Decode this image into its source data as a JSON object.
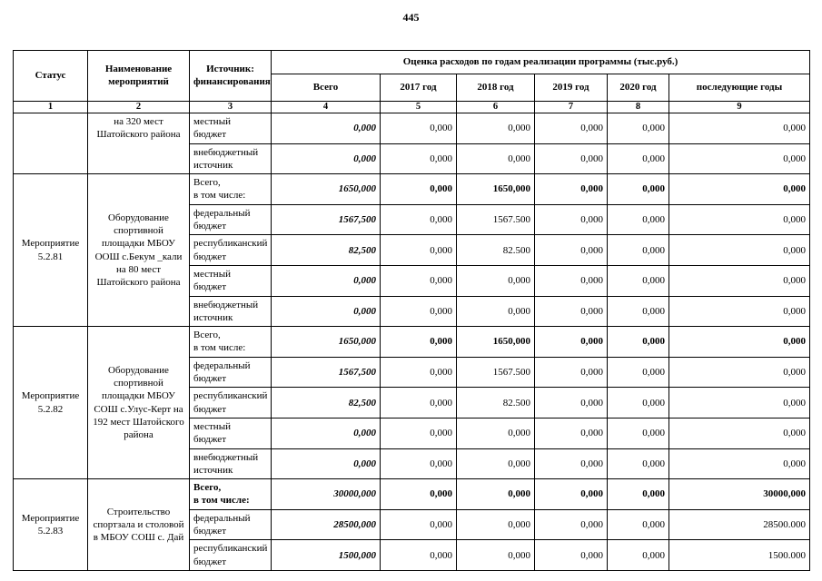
{
  "page_number": "445",
  "table": {
    "header": {
      "status": "Статус",
      "name": "Наименование мероприятий",
      "source": "Источник: финансирования",
      "group": "Оценка расходов по годам реализации  программы (тыс.руб.)",
      "cols": [
        "Всего",
        "2017 год",
        "2018 год",
        "2019 год",
        "2020 год",
        "последующие годы"
      ],
      "numbers": [
        "1",
        "2",
        "3",
        "4",
        "5",
        "6",
        "7",
        "8",
        "9"
      ]
    },
    "groups": [
      {
        "status": "",
        "name": "на 320 мест Шатойского района",
        "name_top": true,
        "rows": [
          {
            "source": "местный\nбюджет",
            "values": [
              "0,000",
              "0,000",
              "0,000",
              "0,000",
              "0,000",
              "0,000"
            ]
          },
          {
            "source": "внебюджетный\nисточник",
            "values": [
              "0,000",
              "0,000",
              "0,000",
              "0,000",
              "0,000",
              "0,000"
            ]
          }
        ]
      },
      {
        "status": "Мероприятие 5.2.81",
        "name": "Оборудование спортивной площадки МБОУ ООШ  с.Бекум _кали на 80 мест Шатойского района",
        "rows": [
          {
            "source": "Всего,\nв том числе:",
            "bold": true,
            "values": [
              "1650,000",
              "0,000",
              "1650,000",
              "0,000",
              "0,000",
              "0,000"
            ]
          },
          {
            "source": "федеральный\nбюджет",
            "values": [
              "1567,500",
              "0,000",
              "1567.500",
              "0,000",
              "0,000",
              "0,000"
            ]
          },
          {
            "source": "республиканский\nбюджет",
            "values": [
              "82,500",
              "0,000",
              "82.500",
              "0,000",
              "0,000",
              "0,000"
            ]
          },
          {
            "source": "местный\nбюджет",
            "values": [
              "0,000",
              "0,000",
              "0,000",
              "0,000",
              "0,000",
              "0,000"
            ]
          },
          {
            "source": "внебюджетный\nисточник",
            "values": [
              "0,000",
              "0,000",
              "0,000",
              "0,000",
              "0,000",
              "0,000"
            ]
          }
        ]
      },
      {
        "status": "Мероприятие 5.2.82",
        "name": "Оборудование спортивной площадки МБОУ СОШ  с.Улус-Керт на 192 мест Шатойского района",
        "rows": [
          {
            "source": "Всего,\nв том числе:",
            "bold": true,
            "values": [
              "1650,000",
              "0,000",
              "1650,000",
              "0,000",
              "0,000",
              "0,000"
            ]
          },
          {
            "source": "федеральный\nбюджет",
            "values": [
              "1567,500",
              "0,000",
              "1567.500",
              "0,000",
              "0,000",
              "0,000"
            ]
          },
          {
            "source": "республиканский\nбюджет",
            "values": [
              "82,500",
              "0,000",
              "82.500",
              "0,000",
              "0,000",
              "0,000"
            ]
          },
          {
            "source": "местный\nбюджет",
            "values": [
              "0,000",
              "0,000",
              "0,000",
              "0,000",
              "0,000",
              "0,000"
            ]
          },
          {
            "source": "внебюджетный\nисточник",
            "values": [
              "0,000",
              "0,000",
              "0,000",
              "0,000",
              "0,000",
              "0,000"
            ]
          }
        ]
      },
      {
        "status": "Мероприятие 5.2.83",
        "name": "Строительство спортзала и столовой в МБОУ СОШ с. Дай",
        "rows": [
          {
            "source": "Всего,\nв том числе:",
            "bold": true,
            "label_bold": true,
            "values": [
              "30000,000",
              "0,000",
              "0,000",
              "0,000",
              "0,000",
              "30000,000"
            ]
          },
          {
            "source": "федеральный\nбюджет",
            "values": [
              "28500,000",
              "0,000",
              "0,000",
              "0,000",
              "0,000",
              "28500.000"
            ]
          },
          {
            "source": "республиканский\nбюджет",
            "values": [
              "1500,000",
              "0,000",
              "0,000",
              "0,000",
              "0,000",
              "1500.000"
            ]
          }
        ]
      }
    ]
  }
}
